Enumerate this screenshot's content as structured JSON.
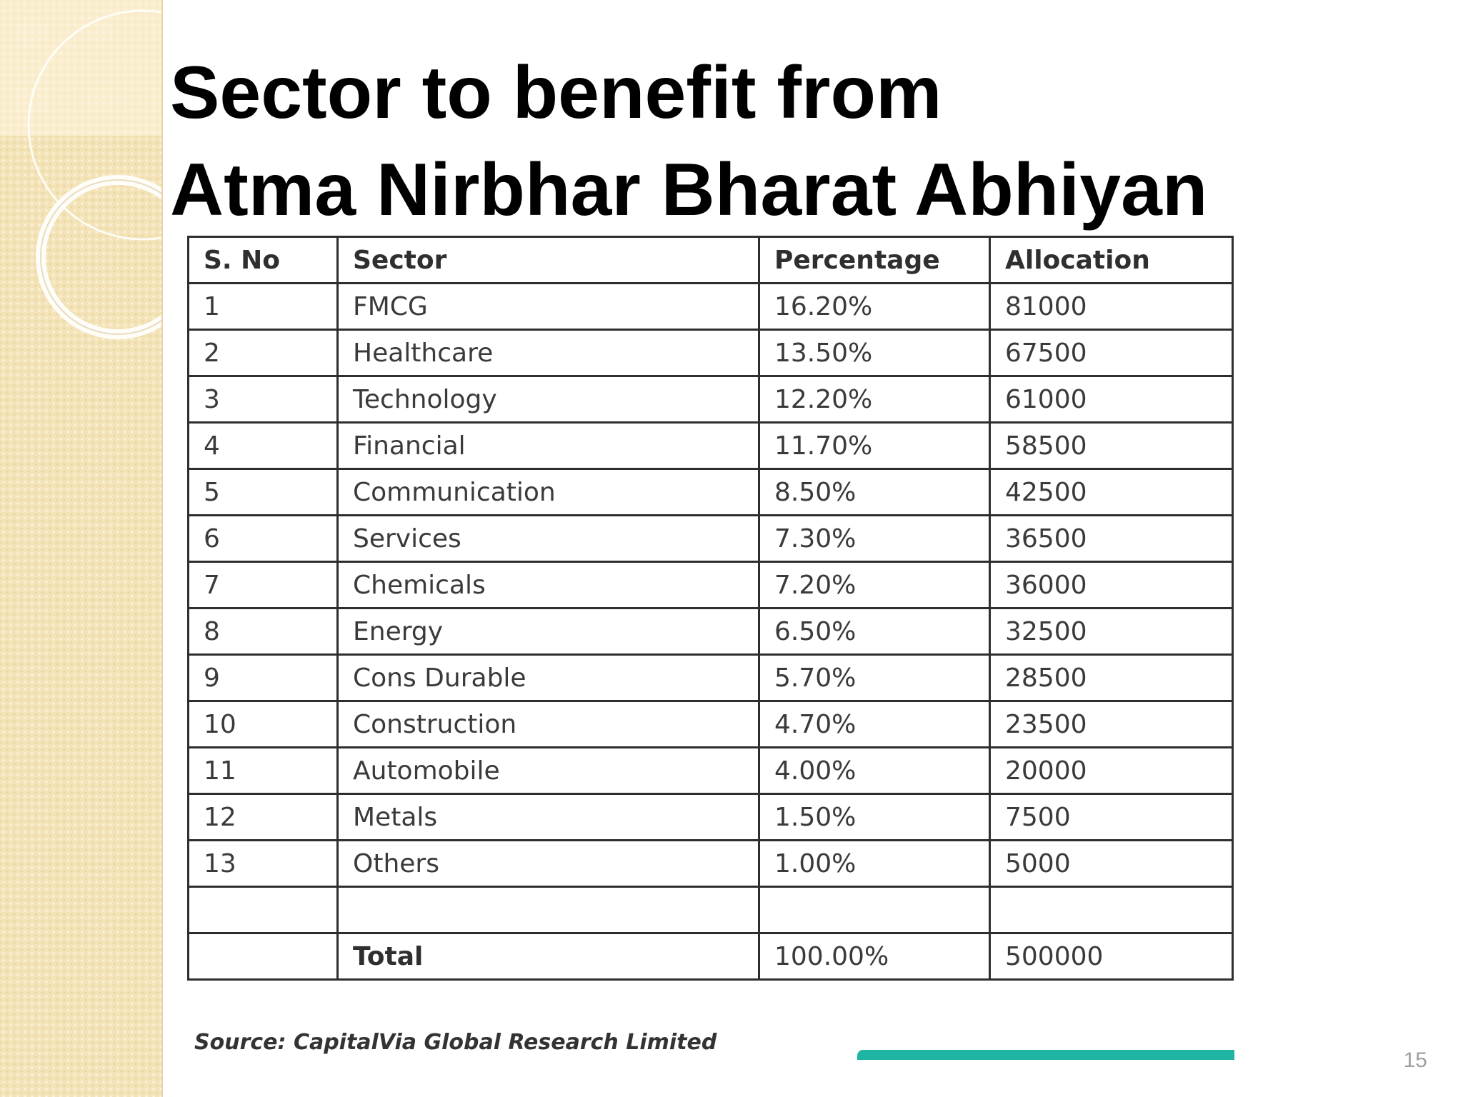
{
  "slide": {
    "title_line1": "Sector to benefit from",
    "title_line2": "Atma Nirbhar Bharat Abhiyan",
    "page_number": "15"
  },
  "table": {
    "headers": [
      "S. No",
      "Sector",
      "Percentage",
      "Allocation"
    ],
    "rows": [
      [
        "1",
        "FMCG",
        "16.20%",
        "81000"
      ],
      [
        "2",
        "Healthcare",
        "13.50%",
        "67500"
      ],
      [
        "3",
        "Technology",
        "12.20%",
        "61000"
      ],
      [
        "4",
        "Financial",
        "11.70%",
        "58500"
      ],
      [
        "5",
        "Communication",
        "8.50%",
        "42500"
      ],
      [
        "6",
        "Services",
        "7.30%",
        "36500"
      ],
      [
        "7",
        "Chemicals",
        "7.20%",
        "36000"
      ],
      [
        "8",
        "Energy",
        "6.50%",
        "32500"
      ],
      [
        "9",
        "Cons Durable",
        "5.70%",
        "28500"
      ],
      [
        "10",
        "Construction",
        "4.70%",
        "23500"
      ],
      [
        "11",
        "Automobile",
        "4.00%",
        "20000"
      ],
      [
        "12",
        "Metals",
        "1.50%",
        "7500"
      ],
      [
        "13",
        "Others",
        "1.00%",
        "5000"
      ],
      [
        "",
        "",
        "",
        ""
      ]
    ],
    "total": [
      "",
      "Total",
      "100.00%",
      "500000"
    ]
  },
  "source": "Source: CapitalVia Global Research Limited",
  "colors": {
    "side_panel": "#f3e3b6",
    "accent_bar": "#1fb5a3",
    "table_border": "#2e2e2e"
  }
}
